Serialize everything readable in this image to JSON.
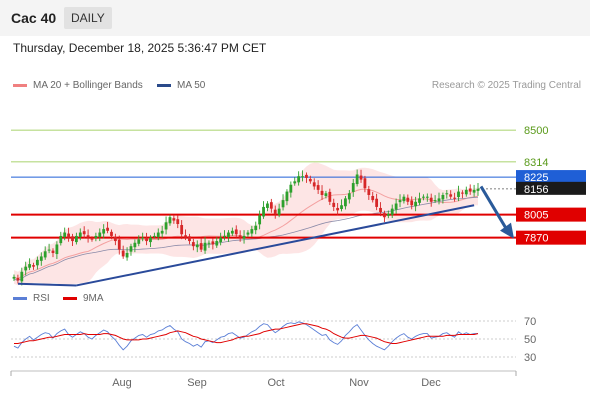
{
  "header": {
    "title": "Cac 40",
    "period": "DAILY"
  },
  "datetime": "Thursday, December 18, 2025 5:36:47 PM CET",
  "legend": {
    "bb_label": "MA 20 + Bollinger Bands",
    "ma50_label": "MA 50"
  },
  "credit": "Research © 2025 Trading Central",
  "rsi_legend": {
    "rsi": "RSI",
    "ma9": "9MA"
  },
  "colors": {
    "up": "#2ca02c",
    "down": "#d62728",
    "bands": "#fde2e2",
    "ma50": "#2a4a8a",
    "resistance": "#1f5fd6",
    "support": "#e00000",
    "target": "#8cc63f",
    "trend": "#2a4a9a",
    "arrow": "#2a5a9a",
    "rsi": "#5b7fd6"
  },
  "chart_data": {
    "type": "candlestick",
    "x_labels": [
      "Aug",
      "Sep",
      "Oct",
      "Nov",
      "Dec"
    ],
    "price_range": [
      7575,
      8700
    ],
    "levels": [
      {
        "label": "8500",
        "value": 8500,
        "kind": "target"
      },
      {
        "label": "8314",
        "value": 8314,
        "kind": "target"
      },
      {
        "label": "8225",
        "value": 8225,
        "kind": "pivot"
      },
      {
        "label": "8156",
        "value": 8156,
        "kind": "last"
      },
      {
        "label": "8005",
        "value": 8005,
        "kind": "support"
      },
      {
        "label": "7870",
        "value": 7870,
        "kind": "support"
      }
    ],
    "closes": [
      7640,
      7620,
      7670,
      7700,
      7715,
      7700,
      7740,
      7760,
      7790,
      7800,
      7780,
      7830,
      7880,
      7900,
      7870,
      7850,
      7880,
      7900,
      7890,
      7870,
      7860,
      7880,
      7900,
      7920,
      7910,
      7880,
      7850,
      7800,
      7760,
      7780,
      7820,
      7840,
      7860,
      7870,
      7850,
      7870,
      7880,
      7900,
      7910,
      7960,
      7990,
      7970,
      7950,
      7890,
      7870,
      7850,
      7820,
      7830,
      7800,
      7840,
      7840,
      7830,
      7850,
      7870,
      7880,
      7900,
      7910,
      7890,
      7870,
      7880,
      7900,
      7920,
      7940,
      8000,
      8050,
      8070,
      8040,
      8010,
      8040,
      8090,
      8140,
      8180,
      8200,
      8230,
      8230,
      8220,
      8200,
      8170,
      8150,
      8120,
      8130,
      8080,
      8050,
      8030,
      8060,
      8100,
      8130,
      8190,
      8240,
      8210,
      8160,
      8120,
      8090,
      8050,
      8020,
      7990,
      8010,
      8040,
      8070,
      8090,
      8110,
      8080,
      8060,
      8080,
      8100,
      8110,
      8110,
      8080,
      8090,
      8100,
      8120,
      8130,
      8110,
      8100,
      8140,
      8130,
      8150,
      8140,
      8150,
      8156
    ],
    "rsi_range": [
      20,
      80
    ],
    "rsi_ticks": [
      70,
      50,
      30
    ],
    "rsi": [
      42,
      40,
      46,
      50,
      53,
      49,
      52,
      55,
      57,
      56,
      51,
      56,
      59,
      61,
      55,
      52,
      55,
      58,
      56,
      52,
      50,
      54,
      57,
      60,
      58,
      53,
      49,
      43,
      38,
      42,
      48,
      51,
      54,
      55,
      52,
      55,
      56,
      59,
      60,
      63,
      65,
      61,
      58,
      50,
      47,
      45,
      42,
      44,
      41,
      47,
      48,
      46,
      49,
      52,
      53,
      56,
      57,
      54,
      51,
      52,
      55,
      58,
      60,
      64,
      67,
      66,
      61,
      57,
      60,
      64,
      67,
      68,
      67,
      69,
      68,
      66,
      63,
      60,
      57,
      54,
      55,
      49,
      46,
      44,
      48,
      54,
      58,
      63,
      66,
      60,
      54,
      49,
      45,
      42,
      40,
      38,
      42,
      47,
      51,
      54,
      56,
      52,
      50,
      53,
      55,
      56,
      56,
      51,
      52,
      53,
      56,
      57,
      54,
      52,
      58,
      55,
      57,
      55,
      56,
      56
    ],
    "rsi_ma9": [
      45,
      45,
      46,
      47,
      48,
      48,
      49,
      50,
      51,
      52,
      52,
      53,
      54,
      55,
      55,
      55,
      55,
      55,
      56,
      55,
      55,
      55,
      55,
      56,
      56,
      55,
      54,
      52,
      50,
      49,
      49,
      49,
      49,
      50,
      50,
      51,
      52,
      53,
      54,
      55,
      57,
      58,
      59,
      58,
      57,
      55,
      53,
      52,
      50,
      49,
      48,
      47,
      46,
      46,
      47,
      48,
      49,
      51,
      52,
      53,
      53,
      54,
      55,
      56,
      58,
      59,
      60,
      61,
      61,
      62,
      63,
      64,
      65,
      66,
      67,
      67,
      66,
      65,
      64,
      62,
      61,
      59,
      56,
      54,
      52,
      51,
      51,
      52,
      53,
      54,
      54,
      53,
      52,
      51,
      49,
      47,
      46,
      45,
      45,
      46,
      47,
      48,
      49,
      50,
      51,
      52,
      53,
      53,
      53,
      53,
      53,
      54,
      54,
      54,
      55,
      55,
      55,
      55,
      55,
      56
    ],
    "trendline": {
      "from": [
        16,
        7590
      ],
      "to": [
        118,
        8060
      ]
    }
  }
}
